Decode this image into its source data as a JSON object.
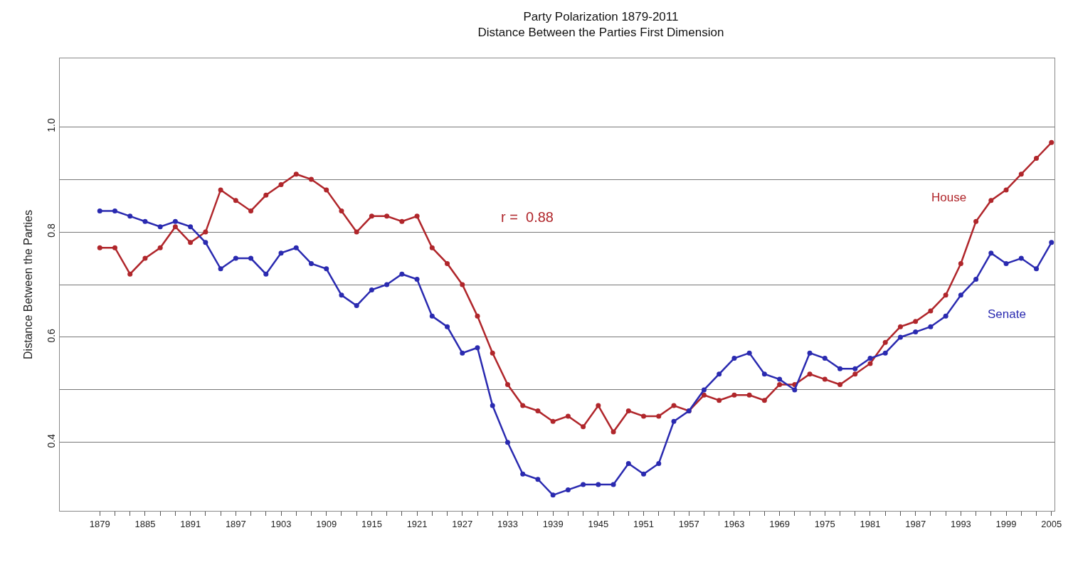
{
  "chart_data": {
    "type": "line",
    "title": "Party Polarization 1879-2011",
    "subtitle": "Distance Between the Parties First Dimension",
    "ylabel": "Distance Between the Parties",
    "annotations": [
      "r =  0.88"
    ],
    "x": [
      1879,
      1881,
      1883,
      1885,
      1887,
      1889,
      1891,
      1893,
      1895,
      1897,
      1899,
      1901,
      1903,
      1905,
      1907,
      1909,
      1911,
      1913,
      1915,
      1917,
      1919,
      1921,
      1923,
      1925,
      1927,
      1929,
      1931,
      1933,
      1935,
      1937,
      1939,
      1941,
      1943,
      1945,
      1947,
      1949,
      1951,
      1953,
      1955,
      1957,
      1959,
      1961,
      1963,
      1965,
      1967,
      1969,
      1971,
      1973,
      1975,
      1977,
      1979,
      1981,
      1983,
      1985,
      1987,
      1989,
      1991,
      1993,
      1995,
      1997,
      1999,
      2001,
      2003,
      2005
    ],
    "series": [
      {
        "name": "House",
        "color": "#b0262b",
        "values": [
          0.77,
          0.77,
          0.72,
          0.75,
          0.77,
          0.81,
          0.78,
          0.8,
          0.88,
          0.86,
          0.84,
          0.87,
          0.89,
          0.91,
          0.9,
          0.88,
          0.84,
          0.8,
          0.83,
          0.83,
          0.82,
          0.83,
          0.77,
          0.74,
          0.7,
          0.64,
          0.57,
          0.51,
          0.47,
          0.46,
          0.44,
          0.45,
          0.43,
          0.47,
          0.42,
          0.46,
          0.45,
          0.45,
          0.47,
          0.46,
          0.49,
          0.48,
          0.49,
          0.49,
          0.48,
          0.51,
          0.51,
          0.53,
          0.52,
          0.51,
          0.53,
          0.55,
          0.59,
          0.62,
          0.63,
          0.65,
          0.68,
          0.74,
          0.82,
          0.86,
          0.88,
          0.91,
          0.94,
          0.97
        ]
      },
      {
        "name": "Senate",
        "color": "#2a2ab0",
        "values": [
          0.84,
          0.84,
          0.83,
          0.82,
          0.81,
          0.82,
          0.81,
          0.78,
          0.73,
          0.75,
          0.75,
          0.72,
          0.76,
          0.77,
          0.74,
          0.73,
          0.68,
          0.66,
          0.69,
          0.7,
          0.72,
          0.71,
          0.64,
          0.62,
          0.57,
          0.58,
          0.47,
          0.4,
          0.34,
          0.33,
          0.3,
          0.31,
          0.32,
          0.32,
          0.32,
          0.36,
          0.34,
          0.36,
          0.44,
          0.46,
          0.5,
          0.53,
          0.56,
          0.57,
          0.53,
          0.52,
          0.5,
          0.57,
          0.56,
          0.54,
          0.54,
          0.56,
          0.57,
          0.6,
          0.61,
          0.62,
          0.64,
          0.68,
          0.71,
          0.76,
          0.74,
          0.75,
          0.73,
          0.78
        ]
      }
    ],
    "xlim": [
      1873.7,
      2005.4
    ],
    "ylim": [
      0.27,
      1.13
    ],
    "xticks": [
      1879,
      {
        "value": 1881,
        "label": null
      },
      {
        "value": 1883,
        "label": null
      },
      1885,
      {
        "value": 1887,
        "label": null
      },
      {
        "value": 1889,
        "label": null
      },
      1891,
      {
        "value": 1893,
        "label": null
      },
      {
        "value": 1895,
        "label": null
      },
      1897,
      {
        "value": 1899,
        "label": null
      },
      {
        "value": 1901,
        "label": null
      },
      1903,
      {
        "value": 1905,
        "label": null
      },
      {
        "value": 1907,
        "label": null
      },
      1909,
      {
        "value": 1911,
        "label": null
      },
      {
        "value": 1913,
        "label": null
      },
      1915,
      {
        "value": 1917,
        "label": null
      },
      {
        "value": 1919,
        "label": null
      },
      1921,
      {
        "value": 1923,
        "label": null
      },
      {
        "value": 1925,
        "label": null
      },
      1927,
      {
        "value": 1929,
        "label": null
      },
      {
        "value": 1931,
        "label": null
      },
      1933,
      {
        "value": 1935,
        "label": null
      },
      {
        "value": 1937,
        "label": null
      },
      1939,
      {
        "value": 1941,
        "label": null
      },
      {
        "value": 1943,
        "label": null
      },
      1945,
      {
        "value": 1947,
        "label": null
      },
      {
        "value": 1949,
        "label": null
      },
      1951,
      {
        "value": 1953,
        "label": null
      },
      {
        "value": 1955,
        "label": null
      },
      1957,
      {
        "value": 1959,
        "label": null
      },
      {
        "value": 1961,
        "label": null
      },
      1963,
      {
        "value": 1965,
        "label": null
      },
      {
        "value": 1967,
        "label": null
      },
      1969,
      {
        "value": 1971,
        "label": null
      },
      {
        "value": 1973,
        "label": null
      },
      1975,
      {
        "value": 1977,
        "label": null
      },
      {
        "value": 1979,
        "label": null
      },
      1981,
      {
        "value": 1983,
        "label": null
      },
      {
        "value": 1985,
        "label": null
      },
      1987,
      {
        "value": 1989,
        "label": null
      },
      {
        "value": 1991,
        "label": null
      },
      1993,
      {
        "value": 1995,
        "label": null
      },
      {
        "value": 1997,
        "label": null
      },
      1999,
      {
        "value": 2001,
        "label": null
      },
      {
        "value": 2003,
        "label": null
      },
      2005
    ],
    "yticks": [
      0.4,
      {
        "value": 0.5,
        "label": null
      },
      0.6,
      {
        "value": 0.7,
        "label": null
      },
      0.8,
      {
        "value": 0.9,
        "label": null
      },
      {
        "value": 1,
        "label": "1.0"
      }
    ],
    "grid": "y",
    "marker": "circle",
    "line_style": "solid"
  }
}
